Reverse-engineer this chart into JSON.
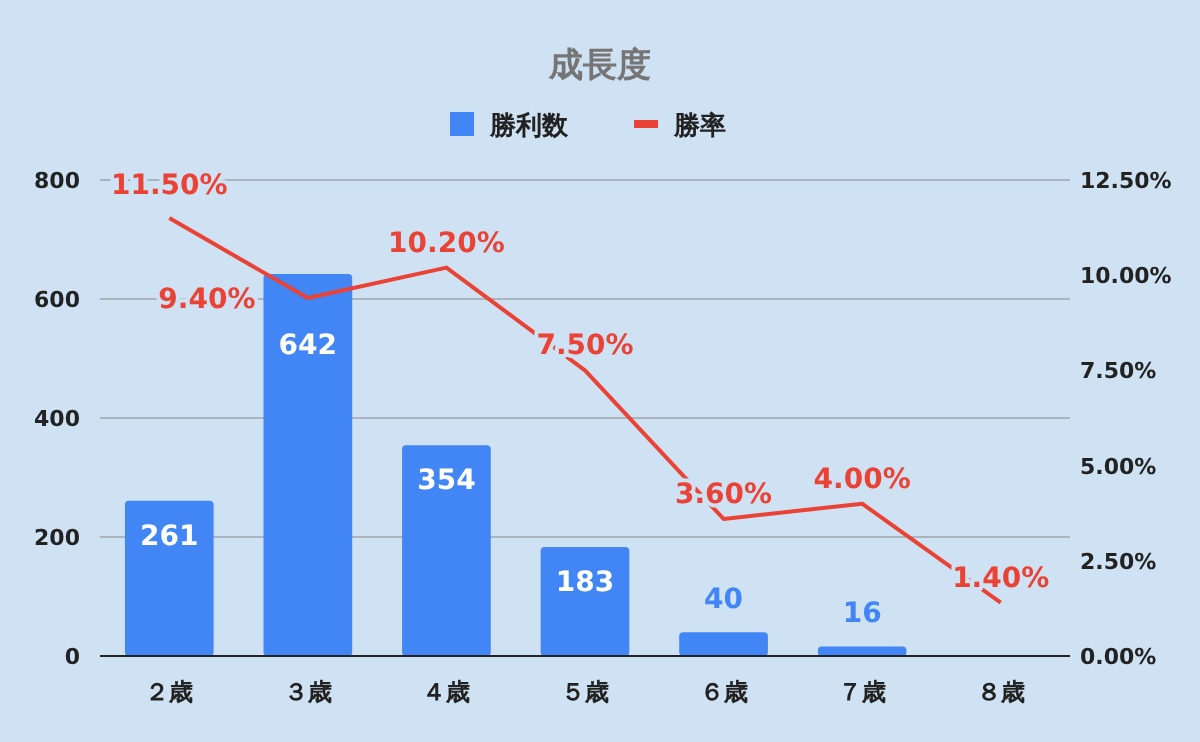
{
  "chart_data": {
    "type": "bar",
    "title": "成長度",
    "categories": [
      "２歳",
      "３歳",
      "４歳",
      "５歳",
      "６歳",
      "７歳",
      "８歳"
    ],
    "series": [
      {
        "name": "勝利数",
        "color": "#4285f4",
        "values": [
          261,
          642,
          354,
          183,
          40,
          16,
          null
        ],
        "value_labels": [
          "261",
          "642",
          "354",
          "183",
          "40",
          "16",
          null
        ]
      },
      {
        "name": "勝率",
        "type": "line",
        "axis": "y2",
        "color": "#ea4335",
        "values": [
          11.5,
          9.4,
          10.2,
          7.5,
          3.6,
          4.0,
          1.4
        ],
        "value_labels": [
          "11.50%",
          "9.40%",
          "10.20%",
          "7.50%",
          "3.60%",
          "4.00%",
          "1.40%"
        ]
      }
    ],
    "ylim": [
      0,
      800
    ],
    "yticks": [
      0,
      200,
      400,
      600,
      800
    ],
    "y2lim": [
      0,
      12.5
    ],
    "y2ticks": [
      {
        "value": 0,
        "label": "0.00%"
      },
      {
        "value": 2.5,
        "label": "2.50%"
      },
      {
        "value": 5,
        "label": "5.00%"
      },
      {
        "value": 7.5,
        "label": "7.50%"
      },
      {
        "value": 10,
        "label": "10.00%"
      },
      {
        "value": 12.5,
        "label": "12.50%"
      }
    ],
    "grid": "y",
    "legend": "top",
    "marker": "none",
    "line_style": "solid"
  }
}
